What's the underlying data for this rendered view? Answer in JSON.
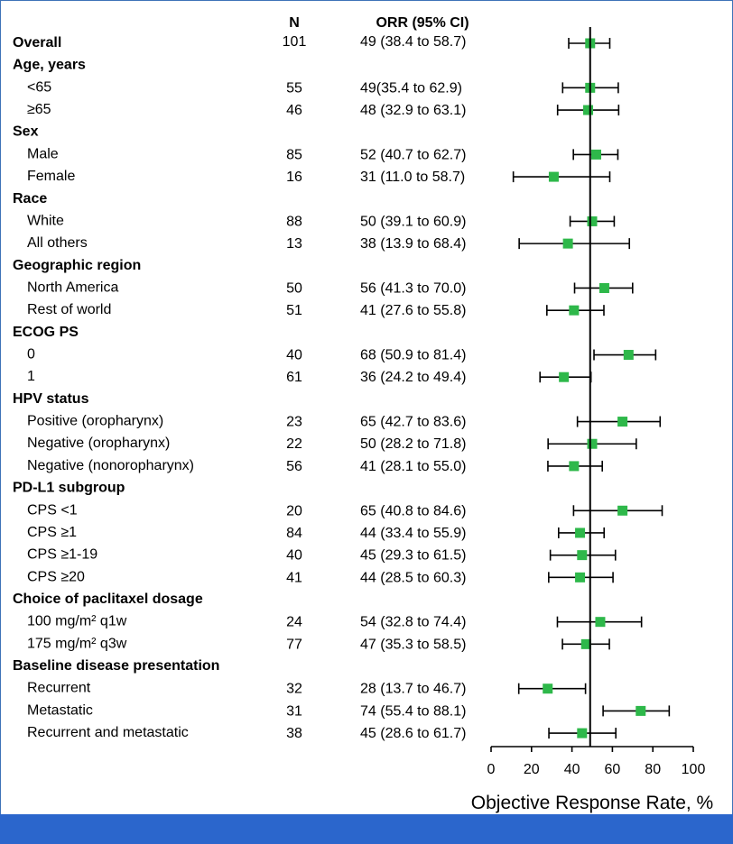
{
  "chart_data": {
    "type": "forest",
    "columns": {
      "n": "N",
      "orr": "ORR (95% CI)"
    },
    "rows": [
      {
        "label": "Overall",
        "group": true,
        "n": "101",
        "orr_text": "49 (38.4 to 58.7)",
        "est": 49,
        "lo": 38.4,
        "hi": 58.7
      },
      {
        "label": "Age, years",
        "group": true
      },
      {
        "label": "<65",
        "n": "55",
        "orr_text": "49(35.4 to 62.9)",
        "est": 49,
        "lo": 35.4,
        "hi": 62.9
      },
      {
        "label": "≥65",
        "n": "46",
        "orr_text": "48 (32.9 to 63.1)",
        "est": 48,
        "lo": 32.9,
        "hi": 63.1
      },
      {
        "label": "Sex",
        "group": true
      },
      {
        "label": "Male",
        "n": "85",
        "orr_text": "52 (40.7 to 62.7)",
        "est": 52,
        "lo": 40.7,
        "hi": 62.7
      },
      {
        "label": "Female",
        "n": "16",
        "orr_text": "31 (11.0 to 58.7)",
        "est": 31,
        "lo": 11.0,
        "hi": 58.7
      },
      {
        "label": "Race",
        "group": true
      },
      {
        "label": "White",
        "n": "88",
        "orr_text": "50 (39.1 to 60.9)",
        "est": 50,
        "lo": 39.1,
        "hi": 60.9
      },
      {
        "label": "All others",
        "n": "13",
        "orr_text": "38 (13.9 to 68.4)",
        "est": 38,
        "lo": 13.9,
        "hi": 68.4
      },
      {
        "label": "Geographic region",
        "group": true
      },
      {
        "label": "North America",
        "n": "50",
        "orr_text": "56 (41.3 to 70.0)",
        "est": 56,
        "lo": 41.3,
        "hi": 70.0
      },
      {
        "label": "Rest of world",
        "n": "51",
        "orr_text": "41 (27.6 to 55.8)",
        "est": 41,
        "lo": 27.6,
        "hi": 55.8
      },
      {
        "label": "ECOG PS",
        "group": true
      },
      {
        "label": "0",
        "n": "40",
        "orr_text": "68 (50.9 to 81.4)",
        "est": 68,
        "lo": 50.9,
        "hi": 81.4
      },
      {
        "label": "1",
        "n": "61",
        "orr_text": "36 (24.2 to 49.4)",
        "est": 36,
        "lo": 24.2,
        "hi": 49.4
      },
      {
        "label": "HPV status",
        "group": true
      },
      {
        "label": "Positive (oropharynx)",
        "n": "23",
        "orr_text": "65 (42.7 to 83.6)",
        "est": 65,
        "lo": 42.7,
        "hi": 83.6
      },
      {
        "label": "Negative (oropharynx)",
        "n": "22",
        "orr_text": "50 (28.2 to 71.8)",
        "est": 50,
        "lo": 28.2,
        "hi": 71.8
      },
      {
        "label": "Negative (nonoropharynx)",
        "n": "56",
        "orr_text": "41 (28.1 to 55.0)",
        "est": 41,
        "lo": 28.1,
        "hi": 55.0
      },
      {
        "label": "PD-L1 subgroup",
        "group": true
      },
      {
        "label": "CPS <1",
        "n": "20",
        "orr_text": "65 (40.8 to 84.6)",
        "est": 65,
        "lo": 40.8,
        "hi": 84.6
      },
      {
        "label": "CPS ≥1",
        "n": "84",
        "orr_text": "44 (33.4 to 55.9)",
        "est": 44,
        "lo": 33.4,
        "hi": 55.9
      },
      {
        "label": "CPS ≥1-19",
        "n": "40",
        "orr_text": "45 (29.3 to 61.5)",
        "est": 45,
        "lo": 29.3,
        "hi": 61.5
      },
      {
        "label": "CPS ≥20",
        "n": "41",
        "orr_text": "44 (28.5 to 60.3)",
        "est": 44,
        "lo": 28.5,
        "hi": 60.3
      },
      {
        "label": "Choice of paclitaxel dosage",
        "group": true
      },
      {
        "label": "100 mg/m² q1w",
        "n": "24",
        "orr_text": "54 (32.8 to 74.4)",
        "est": 54,
        "lo": 32.8,
        "hi": 74.4
      },
      {
        "label": "175 mg/m² q3w",
        "n": "77",
        "orr_text": "47 (35.3 to 58.5)",
        "est": 47,
        "lo": 35.3,
        "hi": 58.5
      },
      {
        "label": "Baseline disease presentation",
        "group": true
      },
      {
        "label": "Recurrent",
        "n": "32",
        "orr_text": "28 (13.7 to 46.7)",
        "est": 28,
        "lo": 13.7,
        "hi": 46.7
      },
      {
        "label": "Metastatic",
        "n": "31",
        "orr_text": "74 (55.4 to 88.1)",
        "est": 74,
        "lo": 55.4,
        "hi": 88.1
      },
      {
        "label": "Recurrent and metastatic",
        "n": "38",
        "orr_text": "45 (28.6 to 61.7)",
        "est": 45,
        "lo": 28.6,
        "hi": 61.7
      }
    ],
    "reference_line": 49,
    "xlim": [
      0,
      100
    ],
    "xticks": [
      "0",
      "20",
      "40",
      "60",
      "80",
      "100"
    ],
    "xlabel": "Objective Response Rate, %",
    "marker_color": "#2eb84a",
    "line_color": "#000000"
  },
  "theme": {
    "border_color": "#3e73b8",
    "bar_color": "#2b66cc"
  }
}
